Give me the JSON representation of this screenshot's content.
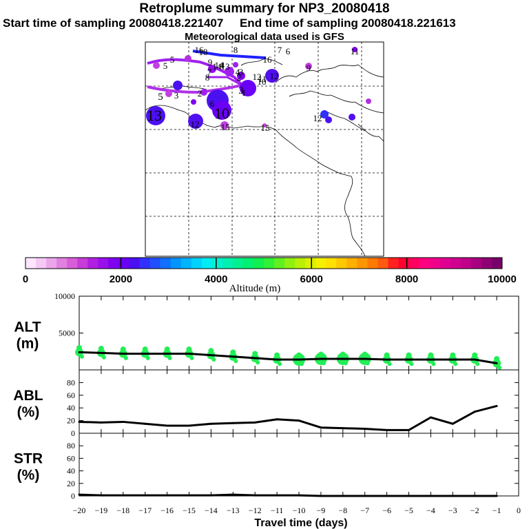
{
  "header": {
    "title": "Retroplume summary for NP3_20080418",
    "start_label": "Start time of sampling 20080418.221407",
    "end_label": "End time of sampling 20080418.221613",
    "met_label": "Meteorological data used is GFS"
  },
  "colorbar": {
    "label": "Altitude (m)",
    "ticks": [
      "0",
      "2000",
      "4000",
      "6000",
      "8000",
      "10000"
    ],
    "colors": [
      "#ffe6ff",
      "#f5c8f5",
      "#eba5eb",
      "#e080e0",
      "#d85ed8",
      "#c83cd8",
      "#b020e0",
      "#9a10ea",
      "#8000f0",
      "#6a00f5",
      "#4b10f0",
      "#3030ff",
      "#2050ff",
      "#1070ff",
      "#0095ff",
      "#00b4ff",
      "#00d2ff",
      "#00ecf5",
      "#00f0d2",
      "#00f0b0",
      "#00f090",
      "#00f070",
      "#10f050",
      "#30f038",
      "#60f020",
      "#90f010",
      "#b8f008",
      "#dcf000",
      "#f5f000",
      "#ffe000",
      "#ffc800",
      "#ffb000",
      "#ff9600",
      "#ff7a00",
      "#ff5a10",
      "#ff2020",
      "#ff0030",
      "#ff0060",
      "#ff0080",
      "#f0008a",
      "#e00090",
      "#d00090",
      "#c0008a",
      "#a80080",
      "#900075",
      "#78006a"
    ]
  },
  "map_labels": [
    "16",
    "18",
    "8",
    "7",
    "6",
    "11",
    "5",
    "9",
    "14",
    "13",
    "3",
    "7",
    "4",
    "2",
    "12",
    "11",
    "5",
    "6",
    "10",
    "3",
    "2",
    "1",
    "3",
    "5",
    "12",
    "10",
    "13",
    "15",
    "12",
    "14",
    "15",
    "16",
    "4",
    "8",
    "9",
    "12"
  ],
  "chart_data": [
    {
      "type": "line",
      "name": "ALT",
      "ylabel_line1": "ALT",
      "ylabel_line2": "(m)",
      "ylim": [
        0,
        10000
      ],
      "yticks": [
        "10000",
        "5000"
      ],
      "x": [
        -20,
        -19,
        -18,
        -17,
        -16,
        -15,
        -14,
        -13,
        -12,
        -11,
        -10,
        -9,
        -8,
        -7,
        -6,
        -5,
        -4,
        -3,
        -2,
        -1
      ],
      "values": [
        2400,
        2300,
        2200,
        2200,
        2200,
        2200,
        2000,
        1800,
        1600,
        1400,
        1400,
        1500,
        1500,
        1500,
        1400,
        1400,
        1400,
        1400,
        1400,
        900
      ],
      "scatter_color": "#22ee55"
    },
    {
      "type": "line",
      "name": "ABL",
      "ylabel_line1": "ABL",
      "ylabel_line2": "(%)",
      "ylim": [
        0,
        100
      ],
      "yticks": [
        "80",
        "60",
        "40",
        "20",
        "0"
      ],
      "x": [
        -20,
        -19,
        -18,
        -17,
        -16,
        -15,
        -14,
        -13,
        -12,
        -11,
        -10,
        -9,
        -8,
        -7,
        -6,
        -5,
        -4,
        -3,
        -2,
        -1
      ],
      "values": [
        18,
        17,
        18,
        15,
        12,
        12,
        15,
        16,
        17,
        22,
        20,
        9,
        8,
        7,
        5,
        5,
        25,
        15,
        34,
        43
      ]
    },
    {
      "type": "line",
      "name": "STR",
      "ylabel_line1": "STR",
      "ylabel_line2": "(%)",
      "ylim": [
        0,
        100
      ],
      "yticks": [
        "80",
        "60",
        "40",
        "20",
        "0"
      ],
      "x": [
        -20,
        -19,
        -18,
        -17,
        -16,
        -15,
        -14,
        -13,
        -12,
        -11,
        -10,
        -9,
        -8,
        -7,
        -6,
        -5,
        -4,
        -3,
        -2,
        -1
      ],
      "values": [
        2,
        1,
        1,
        1,
        1,
        1,
        1,
        2,
        1,
        1,
        1,
        0,
        0,
        0,
        0,
        0,
        0,
        0,
        0,
        0
      ]
    }
  ],
  "xaxis": {
    "label": "Travel time (days)",
    "ticks": [
      "-20",
      "-19",
      "-18",
      "-17",
      "-16",
      "-15",
      "-14",
      "-13",
      "-12",
      "-11",
      "-10",
      "-9",
      "-8",
      "-7",
      "-6",
      "-5",
      "-4",
      "-3",
      "-2",
      "-1",
      "0"
    ]
  }
}
